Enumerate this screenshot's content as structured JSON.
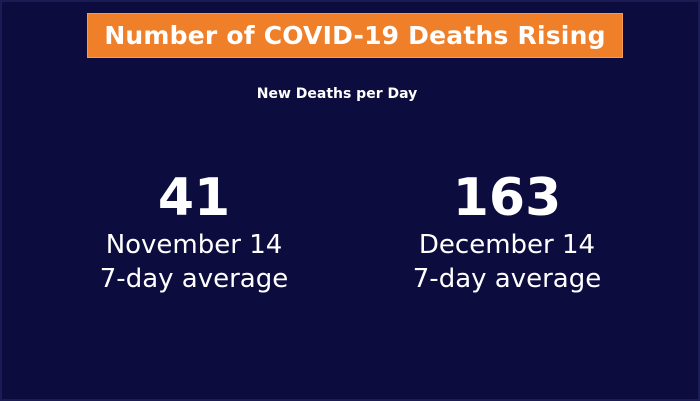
{
  "title": "Number of COVID-19 Deaths Rising",
  "subtitle": "New Deaths per Day",
  "stats": [
    {
      "value": "41",
      "date": "November 14",
      "description": "7-day average"
    },
    {
      "value": "163",
      "date": "December 14",
      "description": "7-day average"
    }
  ],
  "colors": {
    "background": "#0c0c3e",
    "title_bar": "#f07f2a",
    "text": "#ffffff"
  }
}
